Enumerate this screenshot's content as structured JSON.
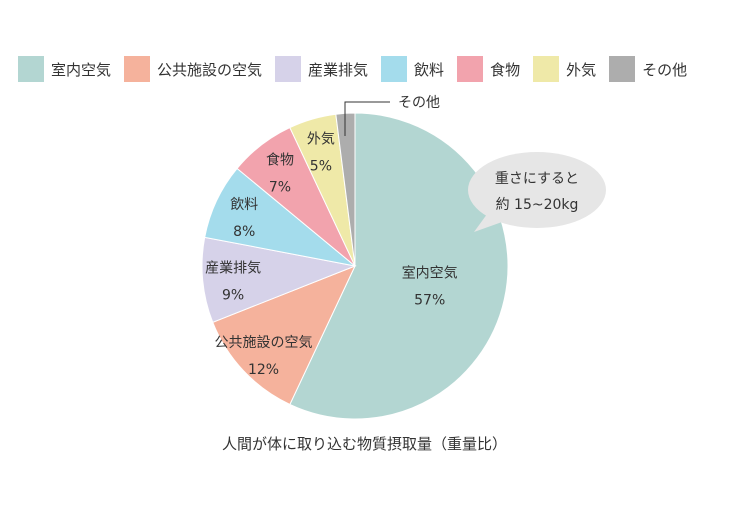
{
  "chart_data": {
    "type": "pie",
    "title": "人間が体に取り込む物質摂取量（重量比）",
    "unit": "%",
    "categories": [
      "室内空気",
      "公共施設の空気",
      "産業排気",
      "飲料",
      "食物",
      "外気",
      "その他"
    ],
    "values": [
      57,
      12,
      9,
      8,
      7,
      5,
      2
    ],
    "value_labels": [
      "57%",
      "12%",
      "9%",
      "8%",
      "7%",
      "5%",
      ""
    ],
    "colors": [
      "#b3d6d2",
      "#f5b29c",
      "#d6d2e9",
      "#a4dcec",
      "#f2a3ad",
      "#efe9a8",
      "#adadad"
    ],
    "legend_position": "top",
    "slice_order": "clockwise-from-top",
    "annotations": [
      {
        "target": "その他",
        "text": "その他",
        "type": "leader-line"
      },
      {
        "target": "室内空気",
        "lines": [
          "重さにすると",
          "約 15~20kg"
        ],
        "type": "speech-bubble"
      }
    ]
  }
}
